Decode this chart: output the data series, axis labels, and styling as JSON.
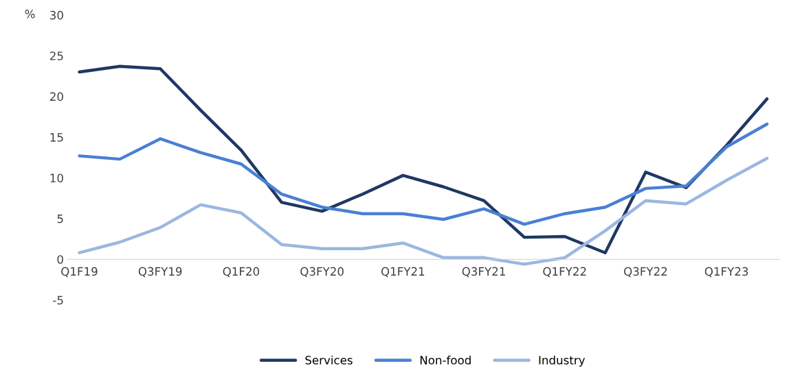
{
  "chart_data": {
    "type": "line",
    "ylabel": "%",
    "categories": [
      "Q1F19",
      null,
      "Q3FY19",
      null,
      "Q1F20",
      null,
      "Q3FY20",
      null,
      "Q1FY21",
      null,
      "Q3FY21",
      null,
      "Q1FY22",
      null,
      "Q3FY22",
      null,
      "Q1FY23",
      null
    ],
    "series": [
      {
        "name": "Services",
        "color": "#1f3864",
        "values": [
          23,
          23.7,
          23.4,
          18.3,
          13.4,
          7,
          5.9,
          8,
          10.3,
          8.9,
          7.2,
          2.7,
          2.8,
          0.8,
          10.7,
          8.8,
          14,
          19.7
        ]
      },
      {
        "name": "Non-food",
        "color": "#4a7fd4",
        "values": [
          12.7,
          12.3,
          14.8,
          13.1,
          11.7,
          8,
          6.4,
          5.6,
          5.6,
          4.9,
          6.2,
          4.3,
          5.6,
          6.4,
          8.7,
          9,
          13.8,
          16.6
        ]
      },
      {
        "name": "Industry",
        "color": "#9bb7e0",
        "values": [
          0.8,
          2.1,
          3.9,
          6.7,
          5.7,
          1.8,
          1.3,
          1.3,
          2,
          0.2,
          0.2,
          -0.6,
          0.2,
          3.5,
          7.2,
          6.8,
          9.7,
          12.4
        ]
      }
    ],
    "ylim": [
      -5,
      30
    ],
    "yticks": [
      -5,
      0,
      5,
      10,
      15,
      20,
      25,
      30
    ],
    "grid": false,
    "legend": "bottom",
    "marker": "none",
    "line_style": "solid"
  }
}
